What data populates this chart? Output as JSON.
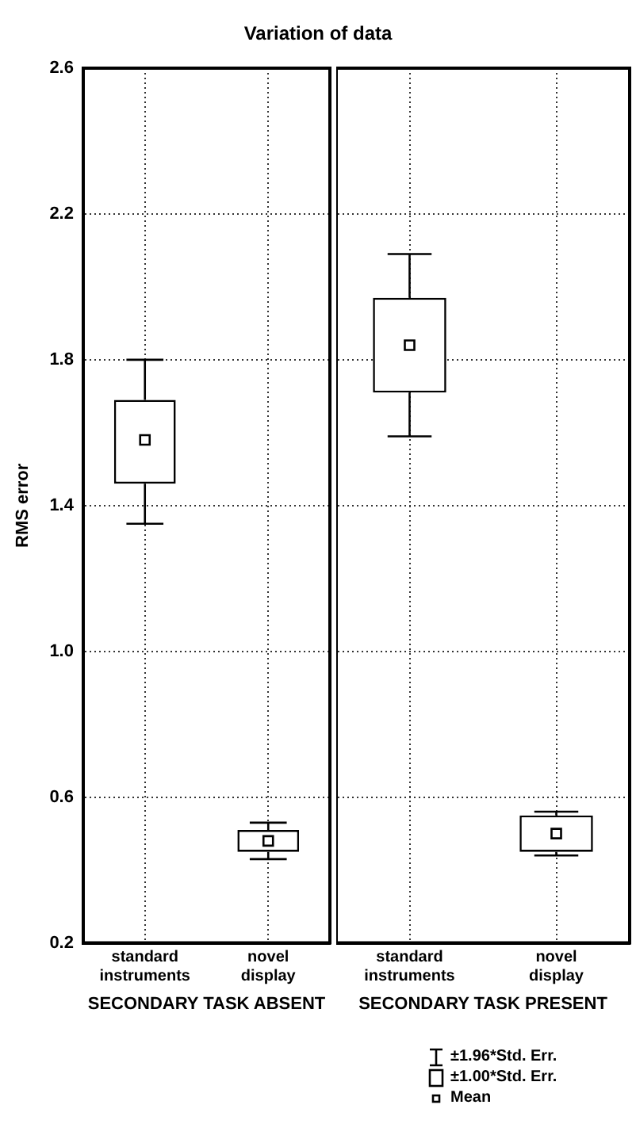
{
  "chart_data": [
    {
      "type": "box",
      "title": "Variation of data",
      "categories": [
        "standard instruments",
        "novel display"
      ],
      "xlabel": "SECONDARY TASK ABSENT",
      "ylabel": "RMS error",
      "ylim": [
        0.2,
        2.6
      ],
      "yticks": [
        0.2,
        0.6,
        {
          "value": 1.0,
          "label": "1.0"
        },
        1.4,
        1.8,
        2.2,
        2.6
      ],
      "grid": true,
      "color": "#000000",
      "boxes": [
        {
          "low": 1.35,
          "q1": 1.46,
          "q3": 1.69,
          "high": 1.8,
          "mean": 1.58
        },
        {
          "low": 0.43,
          "q1": 0.45,
          "q3": 0.51,
          "high": 0.53,
          "mean": 0.48
        }
      ]
    },
    {
      "type": "box",
      "categories": [
        "standard instruments",
        "novel display"
      ],
      "xlabel": "SECONDARY TASK PRESENT",
      "ylim": [
        0.2,
        2.6
      ],
      "yticks": [
        0.2,
        0.6,
        1,
        1.4,
        1.8,
        2.2,
        2.6
      ],
      "tick_labels": "x",
      "grid": true,
      "color": "#000000",
      "boxes": [
        {
          "low": 1.59,
          "q1": 1.71,
          "q3": 1.97,
          "high": 2.09,
          "mean": 1.84
        },
        {
          "low": 0.44,
          "q1": 0.45,
          "q3": 0.55,
          "high": 0.56,
          "mean": 0.5
        }
      ],
      "annotations": [
        "±1.96*Std. Err.",
        "±1.00*Std. Err.",
        "Mean"
      ]
    }
  ]
}
